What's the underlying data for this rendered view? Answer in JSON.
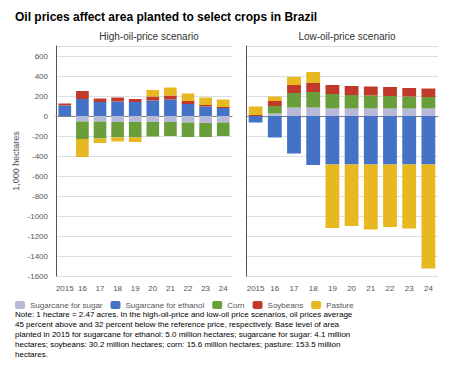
{
  "title": "Oil prices affect area planted to select crops in Brazil",
  "annotations": [
    "Note: 1 hectare = 2.47 acres. In the high-oil-price and low-oil price scenarios, oil prices average\n45 percent above and 32 percent below the reference price, respectively. Base level of area\nplanted in 2015 for sugarcane for ethanol: 5.0 million hectares; sugarcane for sugar: 4.1 million\nhectares; soybeans: 30.2 million hectares; corn: 15.6 million hectares; pasture: 153.5 million\nhectares."
  ],
  "legend": "lower left",
  "chart_data": [
    {
      "type": "bar",
      "title": "High-oil-price scenario",
      "ylabel": "1,000 hectares",
      "categories": [
        "2015",
        "16",
        "17",
        "18",
        "19",
        "20",
        "21",
        "22",
        "23",
        "24"
      ],
      "series": [
        {
          "name": "Sugarcane for sugar",
          "color": "#b8b8d8",
          "values": [
            0,
            -55,
            -55,
            -60,
            -60,
            -60,
            -60,
            -65,
            -70,
            -65
          ]
        },
        {
          "name": "Sugarcane for ethanol",
          "color": "#4472c4",
          "values": [
            105,
            170,
            140,
            145,
            140,
            155,
            165,
            120,
            95,
            80
          ]
        },
        {
          "name": "Corn",
          "color": "#6a9e3a",
          "values": [
            0,
            -175,
            -170,
            -155,
            -155,
            -145,
            -140,
            -145,
            -140,
            -135
          ]
        },
        {
          "name": "Soybeans",
          "color": "#c0392b",
          "values": [
            20,
            80,
            35,
            40,
            30,
            40,
            40,
            30,
            15,
            10
          ]
        },
        {
          "name": "Pasture",
          "color": "#e8b820",
          "values": [
            0,
            -180,
            -45,
            -40,
            -45,
            65,
            80,
            75,
            75,
            75
          ]
        }
      ],
      "ylim": [
        -1600,
        700
      ],
      "yticks": [
        -1600,
        -1400,
        -1200,
        -1000,
        -800,
        -600,
        -400,
        -200,
        0,
        200,
        400,
        600
      ],
      "stacked": true,
      "grid": true
    },
    {
      "type": "bar",
      "title": "Low-oil-price scenario",
      "categories": [
        "2015",
        "16",
        "17",
        "18",
        "19",
        "20",
        "21",
        "22",
        "23",
        "24"
      ],
      "series": [
        {
          "name": "Sugarcane for sugar",
          "color": "#b8b8d8",
          "values": [
            0,
            25,
            85,
            85,
            75,
            75,
            75,
            75,
            75,
            75
          ]
        },
        {
          "name": "Sugarcane for ethanol",
          "color": "#4472c4",
          "values": [
            -65,
            -215,
            -375,
            -490,
            -485,
            -485,
            -485,
            -485,
            -485,
            -485
          ]
        },
        {
          "name": "Corn",
          "color": "#6a9e3a",
          "values": [
            0,
            75,
            145,
            155,
            145,
            135,
            130,
            125,
            120,
            115
          ]
        },
        {
          "name": "Soybeans",
          "color": "#c0392b",
          "values": [
            10,
            50,
            80,
            90,
            90,
            90,
            90,
            90,
            85,
            85
          ]
        },
        {
          "name": "Pasture",
          "color": "#e8b820",
          "values": [
            85,
            45,
            80,
            110,
            -635,
            -615,
            -650,
            -625,
            -640,
            -1040
          ]
        }
      ],
      "ylim": [
        -1600,
        700
      ],
      "yticks": [
        -1600,
        -1400,
        -1200,
        -1000,
        -800,
        -600,
        -400,
        -200,
        0,
        200,
        400,
        600
      ],
      "stacked": true,
      "grid": true,
      "tick_labels": "x"
    }
  ]
}
